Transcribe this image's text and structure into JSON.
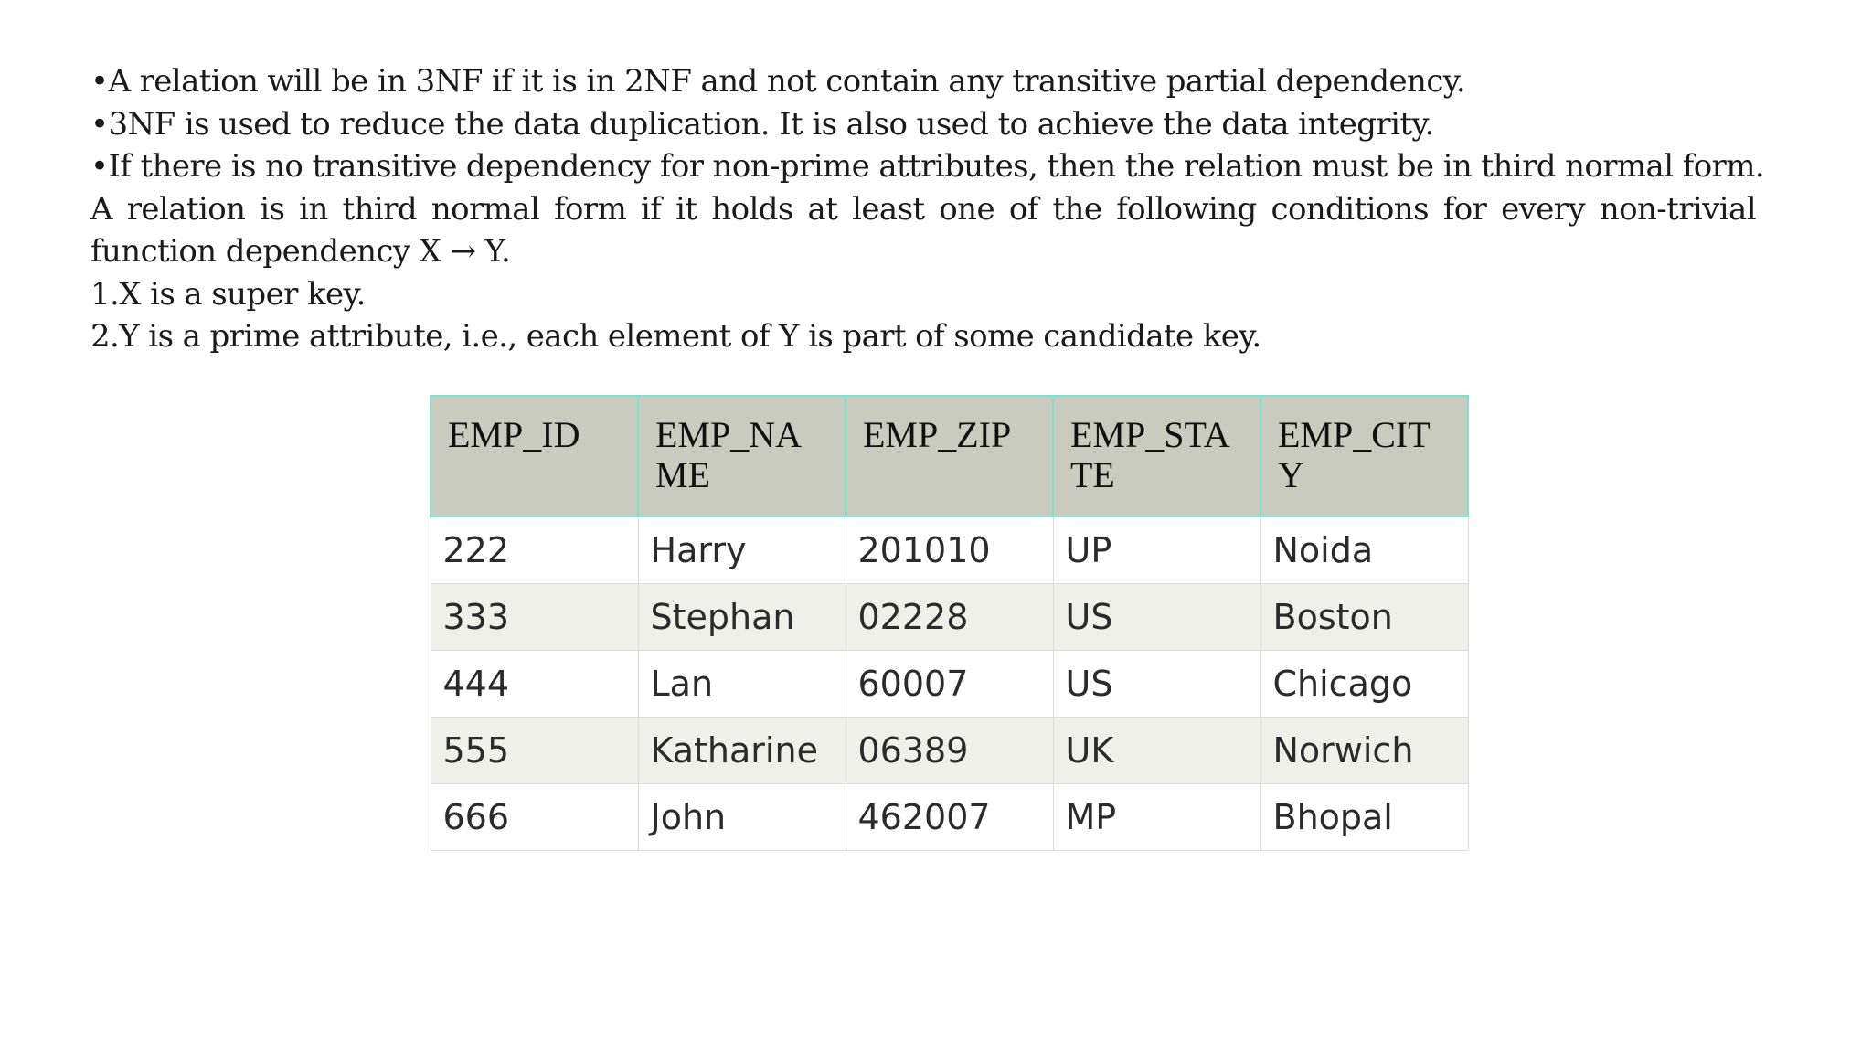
{
  "content": {
    "lines": [
      "•A relation will be in 3NF if it is in 2NF and not contain any transitive partial dependency.",
      "•3NF is used to reduce the data duplication. It is also used to achieve the data integrity.",
      "•If there is no transitive dependency for non-prime attributes, then the relation must be in third normal form.",
      "A relation is in third normal form if it holds at least one of the following conditions for every non-trivial function dependency X → Y.",
      "1.X is a super key.",
      "2.Y is a prime attribute, i.e., each element of Y is part of some candidate key."
    ]
  },
  "table": {
    "headers": [
      "EMP_ID",
      "EMP_NAME",
      "EMP_ZIP",
      "EMP_STATE",
      "EMP_CITY"
    ],
    "rows": [
      [
        "222",
        "Harry",
        "201010",
        "UP",
        "Noida"
      ],
      [
        "333",
        "Stephan",
        "02228",
        "US",
        "Boston"
      ],
      [
        "444",
        "Lan",
        "60007",
        "US",
        "Chicago"
      ],
      [
        "555",
        "Katharine",
        "06389",
        "UK",
        "Norwich"
      ],
      [
        "666",
        "John",
        "462007",
        "MP",
        "Bhopal"
      ]
    ],
    "colors": {
      "header_bg": "#c8cbbd",
      "header_border": "#7fe0d0",
      "row_alt_bg": "#eff0ea"
    }
  }
}
